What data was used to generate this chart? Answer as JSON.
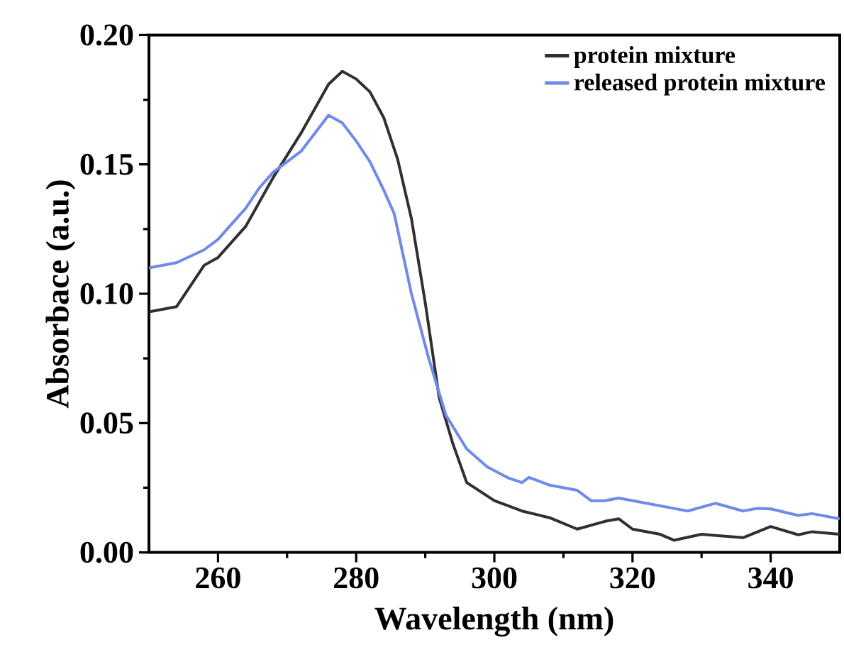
{
  "chart_data": {
    "type": "line",
    "xlabel": "Wavelength (nm)",
    "ylabel": "Absorbace (a.u.)",
    "xlim": [
      250,
      350
    ],
    "ylim": [
      0,
      0.2
    ],
    "xticks": [
      260,
      280,
      300,
      320,
      340
    ],
    "yticks": [
      {
        "value": 0,
        "label": "0.00"
      },
      {
        "value": 0.05,
        "label": "0.05"
      },
      {
        "value": 0.1,
        "label": "0.10"
      },
      {
        "value": 0.15,
        "label": "0.15"
      },
      {
        "value": 0.2,
        "label": "0.20"
      }
    ],
    "legend": "top right",
    "grid": false,
    "marker": "none",
    "line_style": "solid",
    "series": [
      {
        "name": "protein mixture",
        "color": "#303030",
        "x": [
          250,
          254,
          258,
          260,
          264,
          268,
          272,
          276,
          278,
          280,
          282,
          284,
          286,
          288,
          290,
          292,
          294,
          296,
          300,
          304,
          308,
          312,
          316,
          318,
          320,
          324,
          326,
          330,
          336,
          340,
          344,
          346,
          350
        ],
        "values": [
          0.093,
          0.095,
          0.111,
          0.114,
          0.126,
          0.145,
          0.162,
          0.181,
          0.186,
          0.183,
          0.178,
          0.168,
          0.152,
          0.129,
          0.0965,
          0.06,
          0.042,
          0.027,
          0.02,
          0.016,
          0.0134,
          0.009,
          0.012,
          0.013,
          0.009,
          0.007,
          0.0047,
          0.007,
          0.0057,
          0.01,
          0.0068,
          0.008,
          0.007
        ]
      },
      {
        "name": "released protein mixture",
        "color": "#6f8ae8",
        "x": [
          250,
          254,
          258,
          260,
          264,
          266,
          268,
          272,
          274,
          276,
          278,
          280,
          282,
          284,
          285.5,
          288,
          290.5,
          293,
          296,
          299,
          302,
          304,
          305,
          308,
          312,
          314,
          316,
          318,
          322,
          326,
          328,
          332,
          336,
          338,
          340,
          344,
          346,
          350
        ],
        "values": [
          0.11,
          0.112,
          0.117,
          0.121,
          0.133,
          0.141,
          0.147,
          0.155,
          0.162,
          0.169,
          0.166,
          0.159,
          0.151,
          0.14,
          0.131,
          0.1,
          0.075,
          0.053,
          0.04,
          0.033,
          0.0288,
          0.027,
          0.029,
          0.026,
          0.024,
          0.02,
          0.02,
          0.021,
          0.019,
          0.017,
          0.016,
          0.019,
          0.016,
          0.017,
          0.0168,
          0.0143,
          0.015,
          0.013
        ]
      }
    ]
  }
}
